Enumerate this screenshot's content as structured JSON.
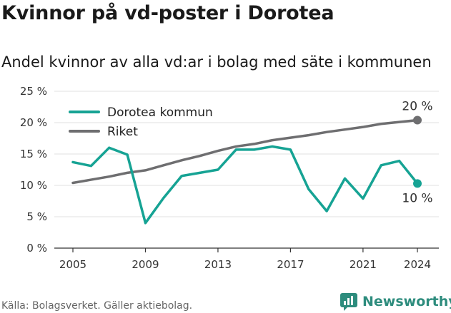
{
  "title": "Kvinnor på vd-poster i Dorotea",
  "subtitle": "Andel kvinnor av alla vd:ar i bolag med säte i kommunen",
  "source": "Källa: Bolagsverket. Gäller aktiebolag.",
  "brand": "Newsworthy",
  "colors": {
    "dorotea": "#16a394",
    "riket": "#6e6e70",
    "grid": "#e0e0e0",
    "axis": "#333333",
    "brand": "#2d8c7d"
  },
  "chart_data": {
    "type": "line",
    "x": [
      2005,
      2006,
      2007,
      2008,
      2009,
      2010,
      2011,
      2012,
      2013,
      2014,
      2015,
      2016,
      2017,
      2018,
      2019,
      2020,
      2021,
      2022,
      2023,
      2024
    ],
    "series": [
      {
        "name": "Dorotea kommun",
        "color": "#16a394",
        "values": [
          13.7,
          13.1,
          16.0,
          14.9,
          4.0,
          8.0,
          11.5,
          12.0,
          12.5,
          15.7,
          15.7,
          16.2,
          15.7,
          9.4,
          5.9,
          11.1,
          7.9,
          13.2,
          13.9,
          10.3
        ]
      },
      {
        "name": "Riket",
        "color": "#6e6e70",
        "values": [
          10.4,
          10.9,
          11.4,
          12.0,
          12.4,
          13.2,
          14.0,
          14.7,
          15.5,
          16.2,
          16.6,
          17.2,
          17.6,
          18.0,
          18.5,
          18.9,
          19.3,
          19.8,
          20.1,
          20.4
        ]
      }
    ],
    "xticks": [
      2005,
      2009,
      2013,
      2017,
      2021,
      2024
    ],
    "yticks": [
      0,
      5,
      10,
      15,
      20,
      25
    ],
    "ytick_labels": [
      "0 %",
      "5 %",
      "10 %",
      "15 %",
      "20 %",
      "25 %"
    ],
    "ylim": [
      0,
      25
    ],
    "xlim": [
      2005,
      2024
    ],
    "end_labels": {
      "Riket": "20 %",
      "Dorotea kommun": "10 %"
    },
    "legend": [
      "Dorotea kommun",
      "Riket"
    ],
    "legend_position": "top-left",
    "grid": true
  }
}
